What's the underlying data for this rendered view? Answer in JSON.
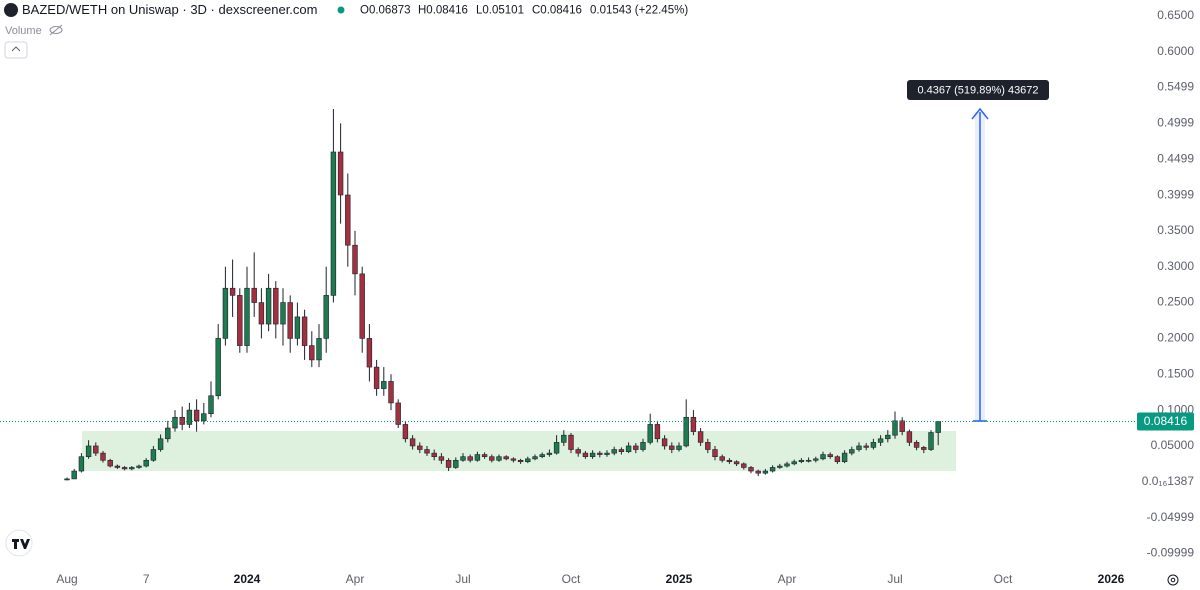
{
  "chart_data": {
    "type": "candlestick",
    "title": "BAZED/WETH on Uniswap · 3D · dexscreener.com",
    "ohlc_text": {
      "open": "O0.06873",
      "high": "H0.08416",
      "low": "L0.05101",
      "close": "C0.08416",
      "change": "0.01543 (+22.45%)"
    },
    "volume_label": "Volume",
    "measure_label": "0.4367 (519.89%) 43672",
    "up_color": "#1e7a4f",
    "down_color": "#a3303f",
    "grid": false,
    "ylim": [
      -0.13,
      0.672
    ],
    "yticks": [
      {
        "value": 0.65,
        "label": "0.6500"
      },
      {
        "value": 0.6,
        "label": "0.6000"
      },
      {
        "value": 0.5499,
        "label": "0.5499"
      },
      {
        "value": 0.4999,
        "label": "0.4999"
      },
      {
        "value": 0.4499,
        "label": "0.4499"
      },
      {
        "value": 0.3999,
        "label": "0.3999"
      },
      {
        "value": 0.35,
        "label": "0.3500"
      },
      {
        "value": 0.3,
        "label": "0.3000"
      },
      {
        "value": 0.25,
        "label": "0.2500"
      },
      {
        "value": 0.2,
        "label": "0.2000"
      },
      {
        "value": 0.15,
        "label": "0.1500"
      },
      {
        "value": 0.1,
        "label": "0.1000"
      },
      {
        "value": 0.05,
        "label": "0.05000"
      },
      {
        "value": 1.387e-17,
        "label": "0.0₁₆1387"
      },
      {
        "value": -0.04999,
        "label": "-0.04999"
      },
      {
        "value": -0.09999,
        "label": "-0.09999"
      }
    ],
    "categories": [
      "Aug",
      null,
      null,
      null,
      null,
      null,
      null,
      null,
      null,
      null,
      null,
      "7",
      null,
      null,
      null,
      null,
      null,
      null,
      null,
      null,
      null,
      null,
      null,
      null,
      null,
      "2024",
      null,
      null,
      null,
      null,
      null,
      null,
      null,
      null,
      null,
      null,
      null,
      null,
      null,
      null,
      "Apr",
      null,
      null,
      null,
      null,
      null,
      null,
      null,
      null,
      null,
      null,
      null,
      null,
      null,
      null,
      "Jul",
      null,
      null,
      null,
      null,
      null,
      null,
      null,
      null,
      null,
      null,
      null,
      null,
      null,
      null,
      "Oct",
      null,
      null,
      null,
      null,
      null,
      null,
      null,
      null,
      null,
      null,
      null,
      null,
      null,
      null,
      "2025",
      null,
      null,
      null,
      null,
      null,
      null,
      null,
      null,
      null,
      null,
      null,
      null,
      null,
      null,
      "Apr",
      null,
      null,
      null,
      null,
      null,
      null,
      null,
      null,
      null,
      null,
      null,
      null,
      null,
      null,
      "Jul",
      null,
      null,
      null,
      null,
      null,
      null,
      null,
      null,
      null,
      null,
      null,
      null,
      null,
      null,
      "Oct",
      null,
      null,
      null,
      null,
      null,
      null,
      null,
      null,
      null,
      null,
      null,
      null,
      null,
      null,
      "2026",
      null
    ],
    "open": [
      0.003,
      0.004,
      0.015,
      0.035,
      0.05,
      0.04,
      0.03,
      0.022,
      0.02,
      0.018,
      0.02,
      0.022,
      0.03,
      0.045,
      0.06,
      0.075,
      0.09,
      0.08,
      0.1,
      0.085,
      0.095,
      0.12,
      0.2,
      0.27,
      0.26,
      0.19,
      0.27,
      0.25,
      0.22,
      0.27,
      0.22,
      0.25,
      0.2,
      0.23,
      0.19,
      0.17,
      0.2,
      0.26,
      0.46,
      0.4,
      0.33,
      0.29,
      0.2,
      0.16,
      0.13,
      0.14,
      0.11,
      0.08,
      0.06,
      0.05,
      0.045,
      0.04,
      0.035,
      0.03,
      0.02,
      0.03,
      0.035,
      0.03,
      0.038,
      0.035,
      0.03,
      0.035,
      0.032,
      0.03,
      0.028,
      0.032,
      0.035,
      0.038,
      0.04,
      0.055,
      0.065,
      0.045,
      0.04,
      0.035,
      0.04,
      0.038,
      0.04,
      0.045,
      0.042,
      0.05,
      0.045,
      0.055,
      0.08,
      0.06,
      0.05,
      0.045,
      0.05,
      0.09,
      0.07,
      0.055,
      0.045,
      0.035,
      0.03,
      0.028,
      0.025,
      0.02,
      0.015,
      0.012,
      0.015,
      0.02,
      0.022,
      0.025,
      0.028,
      0.03,
      0.03,
      0.032,
      0.038,
      0.035,
      0.028,
      0.04,
      0.045,
      0.05,
      0.048,
      0.055,
      0.06,
      0.065,
      0.085,
      0.07,
      0.055,
      0.048,
      0.045,
      0.06873,
      null,
      null,
      null,
      null,
      null,
      null,
      null,
      null,
      null,
      null,
      null,
      null,
      null,
      null,
      null,
      null,
      null,
      null,
      null,
      null,
      null,
      null,
      null,
      null,
      null
    ],
    "high": [
      0.006,
      0.018,
      0.04,
      0.058,
      0.055,
      0.043,
      0.032,
      0.024,
      0.022,
      0.022,
      0.024,
      0.033,
      0.05,
      0.066,
      0.085,
      0.1,
      0.105,
      0.11,
      0.115,
      0.11,
      0.14,
      0.22,
      0.3,
      0.31,
      0.27,
      0.3,
      0.32,
      0.27,
      0.29,
      0.28,
      0.27,
      0.26,
      0.25,
      0.24,
      0.21,
      0.22,
      0.3,
      0.52,
      0.5,
      0.43,
      0.35,
      0.3,
      0.22,
      0.17,
      0.16,
      0.15,
      0.115,
      0.085,
      0.065,
      0.055,
      0.05,
      0.045,
      0.04,
      0.033,
      0.034,
      0.04,
      0.038,
      0.042,
      0.041,
      0.038,
      0.038,
      0.037,
      0.034,
      0.032,
      0.035,
      0.038,
      0.041,
      0.045,
      0.065,
      0.072,
      0.068,
      0.048,
      0.043,
      0.044,
      0.043,
      0.044,
      0.049,
      0.048,
      0.055,
      0.054,
      0.06,
      0.095,
      0.085,
      0.065,
      0.055,
      0.055,
      0.115,
      0.1,
      0.075,
      0.06,
      0.05,
      0.038,
      0.033,
      0.03,
      0.027,
      0.022,
      0.017,
      0.018,
      0.023,
      0.025,
      0.028,
      0.031,
      0.033,
      0.034,
      0.035,
      0.042,
      0.041,
      0.037,
      0.044,
      0.049,
      0.055,
      0.054,
      0.06,
      0.065,
      0.072,
      0.098,
      0.09,
      0.073,
      0.058,
      0.05,
      0.072,
      0.08416,
      null,
      null,
      null,
      null,
      null,
      null,
      null,
      null,
      null,
      null,
      null,
      null,
      null,
      null,
      null,
      null,
      null,
      null,
      null,
      null,
      null,
      null,
      null,
      null,
      null
    ],
    "low": [
      0.002,
      0.004,
      0.013,
      0.032,
      0.036,
      0.027,
      0.02,
      0.018,
      0.016,
      0.016,
      0.018,
      0.02,
      0.028,
      0.042,
      0.055,
      0.07,
      0.072,
      0.075,
      0.07,
      0.08,
      0.09,
      0.115,
      0.19,
      0.23,
      0.18,
      0.18,
      0.23,
      0.2,
      0.21,
      0.2,
      0.19,
      0.18,
      0.19,
      0.17,
      0.16,
      0.16,
      0.18,
      0.25,
      0.36,
      0.3,
      0.26,
      0.18,
      0.14,
      0.12,
      0.12,
      0.1,
      0.075,
      0.055,
      0.045,
      0.04,
      0.036,
      0.03,
      0.025,
      0.015,
      0.018,
      0.028,
      0.027,
      0.028,
      0.032,
      0.027,
      0.028,
      0.03,
      0.027,
      0.025,
      0.026,
      0.03,
      0.033,
      0.035,
      0.038,
      0.05,
      0.04,
      0.035,
      0.032,
      0.032,
      0.034,
      0.035,
      0.037,
      0.038,
      0.04,
      0.04,
      0.042,
      0.052,
      0.055,
      0.045,
      0.04,
      0.042,
      0.048,
      0.065,
      0.05,
      0.04,
      0.03,
      0.027,
      0.025,
      0.022,
      0.017,
      0.012,
      0.008,
      0.01,
      0.013,
      0.018,
      0.02,
      0.023,
      0.026,
      0.027,
      0.027,
      0.03,
      0.032,
      0.025,
      0.026,
      0.037,
      0.042,
      0.044,
      0.045,
      0.05,
      0.055,
      0.06,
      0.065,
      0.05,
      0.044,
      0.04,
      0.043,
      0.05101,
      null,
      null,
      null,
      null,
      null,
      null,
      null,
      null,
      null,
      null,
      null,
      null,
      null,
      null,
      null,
      null,
      null,
      null,
      null,
      null,
      null,
      null,
      null,
      null,
      null
    ],
    "close": [
      0.004,
      0.015,
      0.035,
      0.05,
      0.04,
      0.03,
      0.022,
      0.02,
      0.018,
      0.02,
      0.022,
      0.03,
      0.045,
      0.06,
      0.075,
      0.09,
      0.08,
      0.1,
      0.085,
      0.095,
      0.12,
      0.2,
      0.27,
      0.26,
      0.19,
      0.27,
      0.25,
      0.22,
      0.27,
      0.22,
      0.25,
      0.2,
      0.23,
      0.19,
      0.17,
      0.2,
      0.26,
      0.46,
      0.4,
      0.33,
      0.29,
      0.2,
      0.16,
      0.13,
      0.14,
      0.11,
      0.08,
      0.06,
      0.05,
      0.045,
      0.04,
      0.035,
      0.03,
      0.02,
      0.03,
      0.035,
      0.03,
      0.038,
      0.035,
      0.03,
      0.035,
      0.032,
      0.03,
      0.028,
      0.032,
      0.035,
      0.038,
      0.04,
      0.055,
      0.065,
      0.045,
      0.04,
      0.035,
      0.04,
      0.038,
      0.04,
      0.045,
      0.042,
      0.05,
      0.045,
      0.055,
      0.08,
      0.06,
      0.05,
      0.045,
      0.05,
      0.09,
      0.07,
      0.055,
      0.045,
      0.035,
      0.03,
      0.028,
      0.025,
      0.02,
      0.015,
      0.012,
      0.015,
      0.02,
      0.022,
      0.025,
      0.028,
      0.03,
      0.03,
      0.032,
      0.038,
      0.035,
      0.028,
      0.04,
      0.045,
      0.05,
      0.048,
      0.055,
      0.06,
      0.065,
      0.085,
      0.07,
      0.055,
      0.048,
      0.045,
      0.06873,
      0.08416,
      null,
      null,
      null,
      null,
      null,
      null,
      null,
      null,
      null,
      null,
      null,
      null,
      null,
      null,
      null,
      null,
      null,
      null,
      null,
      null,
      null,
      null,
      null,
      null,
      null
    ]
  }
}
